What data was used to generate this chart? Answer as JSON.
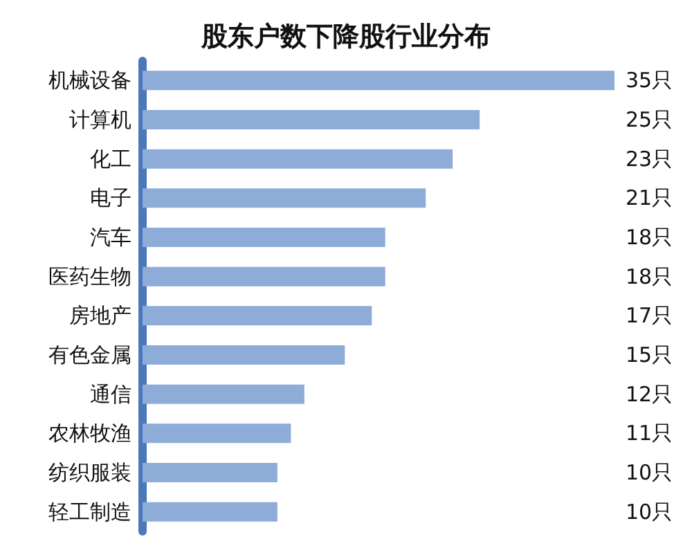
{
  "chart_data": {
    "type": "bar",
    "orientation": "horizontal",
    "title": "股东户数下降股行业分布",
    "categories": [
      "机械设备",
      "计算机",
      "化工",
      "电子",
      "汽车",
      "医药生物",
      "房地产",
      "有色金属",
      "通信",
      "农林牧渔",
      "纺织服装",
      "轻工制造"
    ],
    "values": [
      35,
      25,
      23,
      21,
      18,
      18,
      17,
      15,
      12,
      11,
      10,
      10
    ],
    "value_labels": [
      "35只",
      "25只",
      "23只",
      "21只",
      "18只",
      "18只",
      "17只",
      "15只",
      "12只",
      "11只",
      "10只",
      "10只"
    ],
    "color": "#8eacd8",
    "grid": false
  }
}
